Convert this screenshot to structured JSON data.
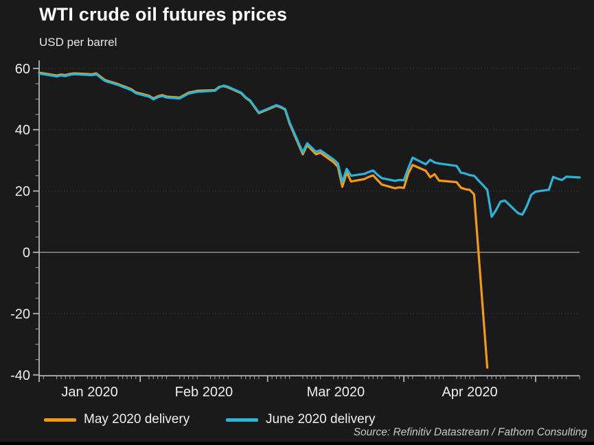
{
  "title": "WTI crude oil futures prices",
  "subtitle": "USD per barrel",
  "source": "Source: Refinitiv Datastream / Fathom Consulting",
  "legend": [
    {
      "label": "May 2020 delivery",
      "color": "#f59b0e"
    },
    {
      "label": "June 2020 delivery",
      "color": "#29b6dc"
    }
  ],
  "colors": {
    "background": "#1a1a1a",
    "title_text": "#ffffff",
    "tick_label": "#efefef",
    "axis_line": "#b3b3b3",
    "minor_tick": "#8f8f8f",
    "zero_line": "#909090",
    "gridline": "rgba(255,255,255,0.13)",
    "may_line": "#f59b0e",
    "june_line": "#29b6dc"
  },
  "chart_data": {
    "type": "line",
    "title": "WTI crude oil futures prices",
    "ylabel": "USD per barrel",
    "x_unit": "calendar days since first plotted session (2020-01-09); business days plotted",
    "x_range_days": [
      0,
      123
    ],
    "ylim": [
      -40,
      62
    ],
    "y_major_ticks": [
      60,
      40,
      20,
      0,
      -20,
      -40
    ],
    "y_minor_step": 5,
    "grid_values": [
      60,
      40,
      20,
      -20,
      -40
    ],
    "zero_line_value": 0,
    "legend_position": "bottom-left",
    "month_start_days": [
      23,
      52,
      83,
      113
    ],
    "x_tick_labels": [
      {
        "label": "Jan 2020",
        "center_day": 11.5
      },
      {
        "label": "Feb 2020",
        "center_day": 37.5
      },
      {
        "label": "Mar 2020",
        "center_day": 67.5
      },
      {
        "label": "Apr 2020",
        "center_day": 98
      }
    ],
    "series": [
      {
        "name": "May 2020 delivery",
        "color": "#f59b0e",
        "points": [
          [
            0,
            58.6
          ],
          [
            1,
            58.4
          ],
          [
            4,
            57.7
          ],
          [
            5,
            58.0
          ],
          [
            6,
            57.8
          ],
          [
            7,
            58.2
          ],
          [
            8,
            58.4
          ],
          [
            12,
            58.1
          ],
          [
            13,
            58.4
          ],
          [
            14,
            57.3
          ],
          [
            15,
            56.2
          ],
          [
            18,
            54.9
          ],
          [
            19,
            54.3
          ],
          [
            20,
            53.8
          ],
          [
            21,
            53.2
          ],
          [
            22,
            52.2
          ],
          [
            25,
            51.1
          ],
          [
            26,
            50.2
          ],
          [
            27,
            50.9
          ],
          [
            28,
            51.3
          ],
          [
            29,
            50.8
          ],
          [
            32,
            50.5
          ],
          [
            33,
            51.3
          ],
          [
            34,
            52.1
          ],
          [
            35,
            52.4
          ],
          [
            36,
            52.7
          ],
          [
            40,
            52.9
          ],
          [
            41,
            54.0
          ],
          [
            42,
            54.2
          ],
          [
            43,
            53.8
          ],
          [
            46,
            51.9
          ],
          [
            47,
            50.4
          ],
          [
            48,
            49.4
          ],
          [
            49,
            47.4
          ],
          [
            50,
            45.4
          ],
          [
            53,
            47.2
          ],
          [
            54,
            47.8
          ],
          [
            55,
            47.3
          ],
          [
            56,
            46.5
          ],
          [
            57,
            42.0
          ],
          [
            60,
            32.0
          ],
          [
            61,
            35.0
          ],
          [
            62,
            33.5
          ],
          [
            63,
            32.0
          ],
          [
            64,
            32.5
          ],
          [
            67,
            29.4
          ],
          [
            68,
            27.9
          ],
          [
            69,
            21.4
          ],
          [
            70,
            26.1
          ],
          [
            71,
            23.1
          ],
          [
            74,
            23.9
          ],
          [
            75,
            24.6
          ],
          [
            76,
            25.1
          ],
          [
            77,
            23.6
          ],
          [
            78,
            22.1
          ],
          [
            81,
            20.9
          ],
          [
            82,
            21.2
          ],
          [
            83,
            21.0
          ],
          [
            84,
            25.7
          ],
          [
            85,
            28.5
          ],
          [
            88,
            26.6
          ],
          [
            89,
            24.5
          ],
          [
            90,
            25.5
          ],
          [
            91,
            23.4
          ],
          [
            95,
            22.9
          ],
          [
            96,
            21.1
          ],
          [
            97,
            20.6
          ],
          [
            98,
            20.4
          ],
          [
            99,
            18.9
          ],
          [
            102,
            -37.63
          ]
        ]
      },
      {
        "name": "June 2020 delivery",
        "color": "#29b6dc",
        "points": [
          [
            0,
            58.3
          ],
          [
            1,
            58.1
          ],
          [
            4,
            57.4
          ],
          [
            5,
            57.7
          ],
          [
            6,
            57.5
          ],
          [
            7,
            57.9
          ],
          [
            8,
            58.1
          ],
          [
            12,
            57.8
          ],
          [
            13,
            58.1
          ],
          [
            14,
            57.0
          ],
          [
            15,
            55.9
          ],
          [
            18,
            54.6
          ],
          [
            19,
            54.0
          ],
          [
            20,
            53.5
          ],
          [
            21,
            52.9
          ],
          [
            22,
            51.9
          ],
          [
            25,
            50.8
          ],
          [
            26,
            49.9
          ],
          [
            27,
            50.6
          ],
          [
            28,
            51.0
          ],
          [
            29,
            50.5
          ],
          [
            32,
            50.2
          ],
          [
            33,
            51.0
          ],
          [
            34,
            51.8
          ],
          [
            35,
            52.1
          ],
          [
            36,
            52.4
          ],
          [
            40,
            52.7
          ],
          [
            41,
            53.8
          ],
          [
            42,
            54.4
          ],
          [
            43,
            54.0
          ],
          [
            46,
            52.1
          ],
          [
            47,
            50.6
          ],
          [
            48,
            49.6
          ],
          [
            49,
            47.6
          ],
          [
            50,
            45.6
          ],
          [
            53,
            47.4
          ],
          [
            54,
            48.0
          ],
          [
            55,
            47.5
          ],
          [
            56,
            46.7
          ],
          [
            57,
            42.4
          ],
          [
            60,
            32.6
          ],
          [
            61,
            35.6
          ],
          [
            62,
            34.2
          ],
          [
            63,
            32.8
          ],
          [
            64,
            33.3
          ],
          [
            67,
            30.3
          ],
          [
            68,
            29.0
          ],
          [
            69,
            22.9
          ],
          [
            70,
            27.2
          ],
          [
            71,
            25.0
          ],
          [
            74,
            25.6
          ],
          [
            75,
            26.2
          ],
          [
            76,
            26.7
          ],
          [
            77,
            25.3
          ],
          [
            78,
            24.2
          ],
          [
            81,
            23.3
          ],
          [
            82,
            23.6
          ],
          [
            83,
            23.5
          ],
          [
            84,
            27.4
          ],
          [
            85,
            30.9
          ],
          [
            88,
            28.7
          ],
          [
            89,
            30.2
          ],
          [
            90,
            29.3
          ],
          [
            91,
            29.0
          ],
          [
            95,
            28.2
          ],
          [
            96,
            26.0
          ],
          [
            97,
            25.7
          ],
          [
            98,
            25.2
          ],
          [
            99,
            25.0
          ],
          [
            102,
            20.4
          ],
          [
            103,
            11.6
          ],
          [
            104,
            13.8
          ],
          [
            105,
            16.5
          ],
          [
            106,
            16.9
          ],
          [
            109,
            12.8
          ],
          [
            110,
            12.3
          ],
          [
            111,
            15.1
          ],
          [
            112,
            18.8
          ],
          [
            113,
            19.8
          ],
          [
            116,
            20.4
          ],
          [
            117,
            24.6
          ],
          [
            118,
            24.0
          ],
          [
            119,
            23.6
          ],
          [
            120,
            24.7
          ],
          [
            123,
            24.4
          ]
        ]
      }
    ]
  }
}
